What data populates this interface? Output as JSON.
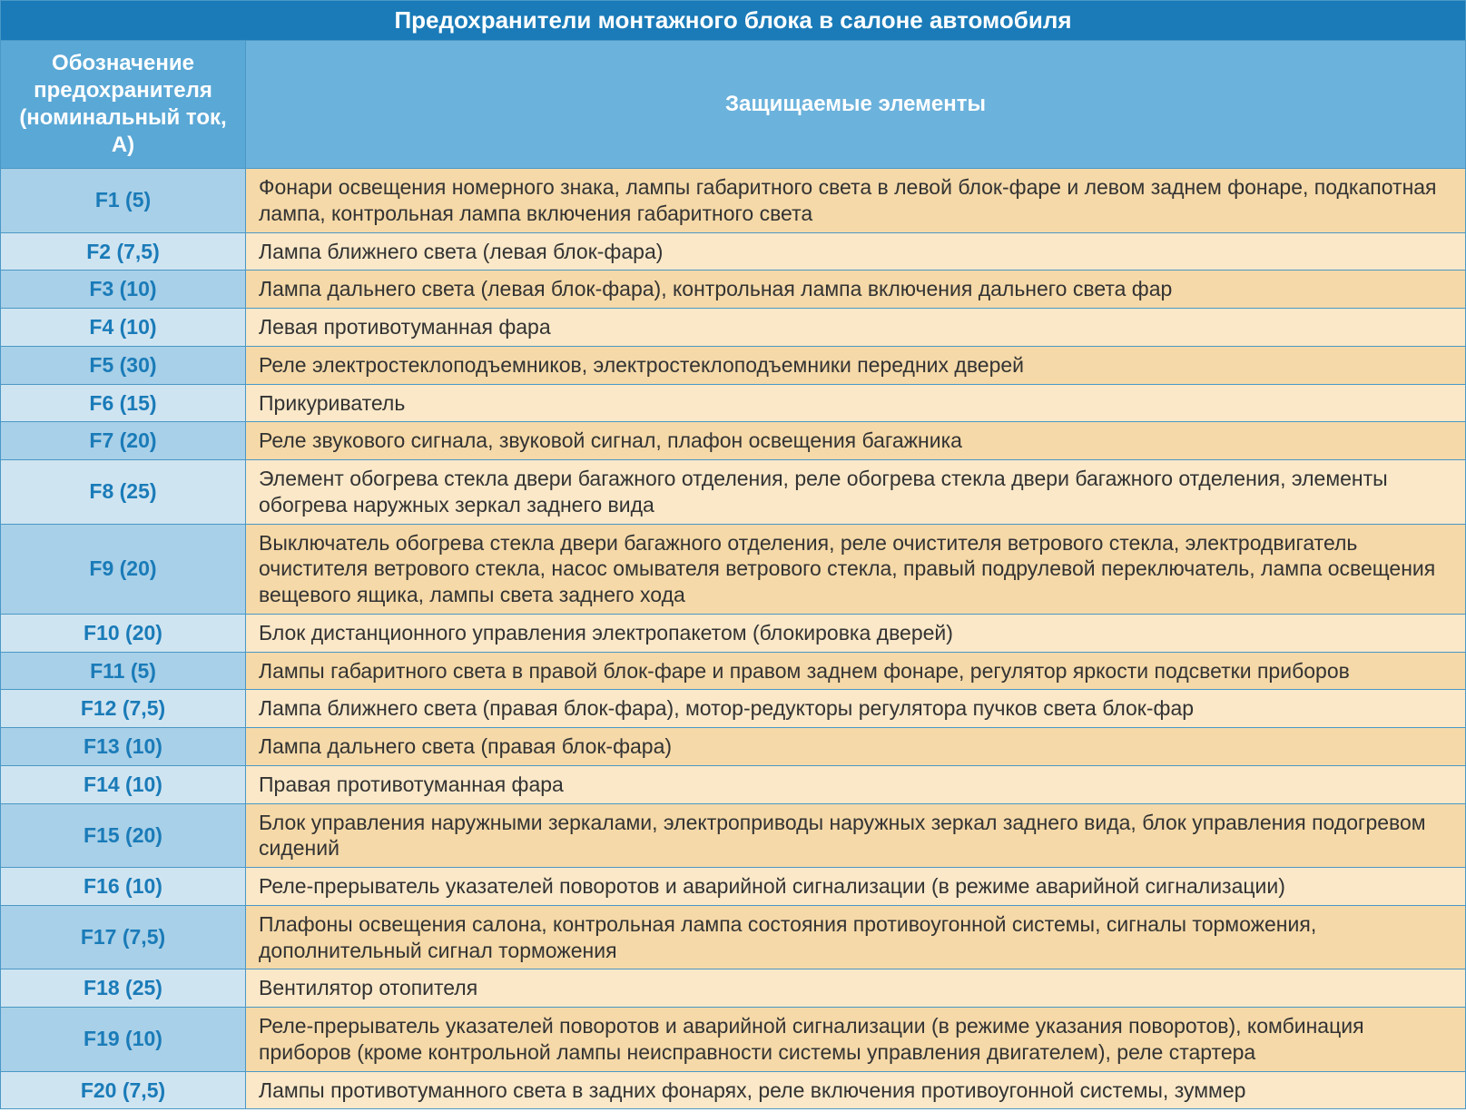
{
  "title": "Предохранители монтажного блока в салоне автомобиля",
  "columns": {
    "fuse": "Обозначение предохранителя (номинальный ток, А)",
    "desc": "Защищаемые элементы"
  },
  "colors": {
    "title_bg": "#1a7bb8",
    "header_left_bg": "#5aa8d6",
    "header_right_bg": "#6bb2dc",
    "border": "#4a98c6",
    "fuse_text": "#1a7bb8",
    "desc_text": "#333333",
    "fuse_bg_even": "#a8d0e8",
    "fuse_bg_odd": "#cfe4f1",
    "desc_bg_even": "#f5d9a8",
    "desc_bg_odd": "#fae8c8"
  },
  "col_widths": {
    "fuse": 270
  },
  "fontsize": {
    "title": 26,
    "header": 24,
    "body": 23
  },
  "rows": [
    {
      "fuse": "F1 (5)",
      "desc": "Фонари освещения номерного знака, лампы габаритного света в левой блок-фаре и левом заднем фонаре, подкапотная лампа, контрольная лампа включения габаритного света"
    },
    {
      "fuse": "F2 (7,5)",
      "desc": "Лампа ближнего света (левая блок-фара)"
    },
    {
      "fuse": "F3 (10)",
      "desc": "Лампа дальнего света (левая блок-фара), контрольная лампа включения дальнего света фар"
    },
    {
      "fuse": "F4 (10)",
      "desc": "Левая противотуманная фара"
    },
    {
      "fuse": "F5 (30)",
      "desc": "Реле электростеклоподъемников, электростеклоподъемники передних дверей"
    },
    {
      "fuse": "F6 (15)",
      "desc": "Прикуриватель"
    },
    {
      "fuse": "F7 (20)",
      "desc": "Реле звукового сигнала, звуковой сигнал, плафон освещения багажника"
    },
    {
      "fuse": "F8 (25)",
      "desc": "Элемент обогрева стекла двери багажного отделения, реле обогрева стекла двери багажного отделения, элементы обогрева наружных зеркал заднего вида"
    },
    {
      "fuse": "F9 (20)",
      "desc": "Выключатель обогрева стекла двери багажного отделения, реле очистителя ветрового стекла, электродвигатель очистителя ветрового стекла, насос омывателя ветрового стекла, правый подрулевой переключатель, лампа освещения вещевого ящика, лампы света заднего хода"
    },
    {
      "fuse": "F10 (20)",
      "desc": "Блок дистанционного управления электропакетом (блокировка дверей)"
    },
    {
      "fuse": "F11 (5)",
      "desc": "Лампы габаритного света в правой блок-фаре и правом заднем фонаре, регулятор яркости подсветки приборов"
    },
    {
      "fuse": "F12 (7,5)",
      "desc": "Лампа ближнего света (правая блок-фара), мотор-редукторы регулятора пучков света блок-фар"
    },
    {
      "fuse": "F13 (10)",
      "desc": "Лампа дальнего света (правая блок-фара)"
    },
    {
      "fuse": "F14 (10)",
      "desc": "Правая противотуманная фара"
    },
    {
      "fuse": "F15 (20)",
      "desc": "Блок управления наружными зеркалами, электроприводы наружных зеркал заднего вида, блок управления подогревом сидений"
    },
    {
      "fuse": "F16 (10)",
      "desc": "Реле-прерыватель указателей поворотов и аварийной сигнализации (в режиме аварийной сигнализации)"
    },
    {
      "fuse": "F17 (7,5)",
      "desc": "Плафоны освещения салона, контрольная лампа состояния противоугонной системы, сигналы торможения, дополнительный сигнал торможения"
    },
    {
      "fuse": "F18 (25)",
      "desc": "Вентилятор отопителя"
    },
    {
      "fuse": "F19 (10)",
      "desc": "Реле-прерыватель указателей поворотов и аварийной сигнализации (в режиме указания поворотов), комбинация приборов (кроме контрольной лампы неисправности системы управления двигателем), реле стартера"
    },
    {
      "fuse": "F20 (7,5)",
      "desc": "Лампы противотуманного света в задних фонарях, реле включения противоугонной системы, зуммер"
    }
  ]
}
